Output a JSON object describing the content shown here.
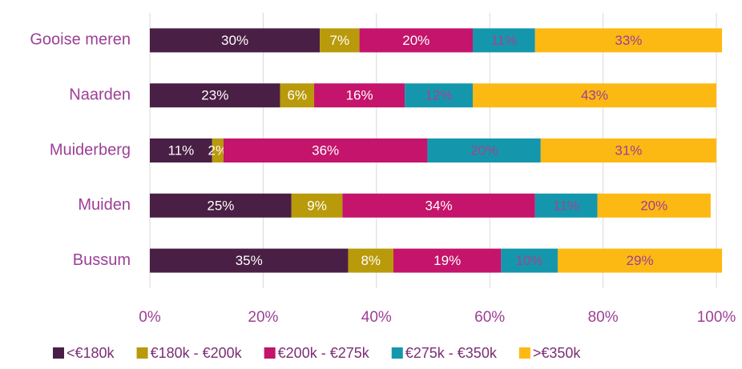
{
  "chart_data": {
    "type": "stacked-bar-horizontal",
    "categories": [
      "Gooise meren",
      "Naarden",
      "Muiderberg",
      "Muiden",
      "Bussum"
    ],
    "series": [
      {
        "name": "<€180k",
        "color": "#4a1f45",
        "label_color": "#ffffff",
        "values": [
          30,
          23,
          11,
          25,
          35
        ],
        "value_labels": [
          "30%",
          "23%",
          "11%",
          "25%",
          "35%"
        ]
      },
      {
        "name": "€180k - €200k",
        "color": "#b99a0a",
        "label_color": "#ffffff",
        "values": [
          7,
          6,
          2,
          9,
          8
        ],
        "value_labels": [
          "7%",
          "6%",
          "2%",
          "9%",
          "8%"
        ]
      },
      {
        "name": "€200k - €275k",
        "color": "#c4146b",
        "label_color": "#ffffff",
        "values": [
          20,
          16,
          36,
          34,
          19
        ],
        "value_labels": [
          "20%",
          "16%",
          "36%",
          "34%",
          "19%"
        ]
      },
      {
        "name": "€275k - €350k",
        "color": "#1497ac",
        "label_color": "#a4448f",
        "values": [
          11,
          12,
          20,
          11,
          10
        ],
        "value_labels": [
          "11%",
          "12%",
          "20%",
          "11%",
          "10%"
        ]
      },
      {
        "name": ">€350k",
        "color": "#fdb913",
        "label_color": "#9c3f96",
        "values": [
          33,
          43,
          31,
          20,
          29
        ],
        "value_labels": [
          "33%",
          "43%",
          "31%",
          "20%",
          "29%"
        ]
      }
    ],
    "xlim": [
      0,
      100
    ],
    "xticks": [
      {
        "value": 0,
        "label": "0%"
      },
      {
        "value": 20,
        "label": "20%"
      },
      {
        "value": 40,
        "label": "40%"
      },
      {
        "value": 60,
        "label": "60%"
      },
      {
        "value": 80,
        "label": "80%"
      },
      {
        "value": 100,
        "label": "100%"
      }
    ],
    "grid": true,
    "legend": "bottom"
  }
}
